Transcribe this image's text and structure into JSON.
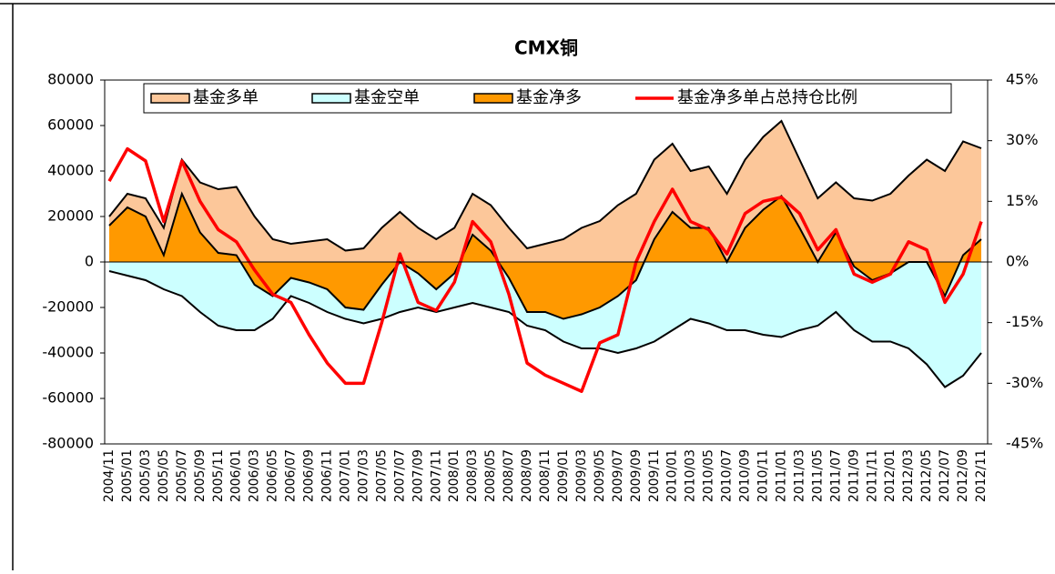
{
  "chart_data": {
    "type": "area-line",
    "title": "CMX铜",
    "categories": [
      "2004/11",
      "2005/01",
      "2005/03",
      "2005/05",
      "2005/07",
      "2005/09",
      "2005/11",
      "2006/01",
      "2006/03",
      "2006/05",
      "2006/07",
      "2006/09",
      "2006/11",
      "2007/01",
      "2007/03",
      "2007/05",
      "2007/07",
      "2007/09",
      "2007/11",
      "2008/01",
      "2008/03",
      "2008/05",
      "2008/07",
      "2008/09",
      "2008/11",
      "2009/01",
      "2009/03",
      "2009/05",
      "2009/07",
      "2009/09",
      "2009/11",
      "2010/01",
      "2010/03",
      "2010/05",
      "2010/07",
      "2010/09",
      "2010/11",
      "2011/01",
      "2011/03",
      "2011/05",
      "2011/07",
      "2011/09",
      "2011/11",
      "2012/01",
      "2012/03",
      "2012/05",
      "2012/07",
      "2012/09",
      "2012/11"
    ],
    "series": [
      {
        "name": "基金多单",
        "color": "#fcc79a",
        "values": [
          20000,
          30000,
          28000,
          15000,
          45000,
          35000,
          32000,
          33000,
          20000,
          10000,
          8000,
          9000,
          10000,
          5000,
          6000,
          15000,
          22000,
          15000,
          10000,
          15000,
          30000,
          25000,
          15000,
          6000,
          8000,
          10000,
          15000,
          18000,
          25000,
          30000,
          45000,
          52000,
          40000,
          42000,
          30000,
          45000,
          55000,
          62000,
          45000,
          28000,
          35000,
          28000,
          27000,
          30000,
          38000,
          45000,
          40000,
          53000,
          50000
        ]
      },
      {
        "name": "基金空单",
        "color": "#ccffff",
        "values": [
          -4000,
          -6000,
          -8000,
          -12000,
          -15000,
          -22000,
          -28000,
          -30000,
          -30000,
          -25000,
          -15000,
          -18000,
          -22000,
          -25000,
          -27000,
          -25000,
          -22000,
          -20000,
          -22000,
          -20000,
          -18000,
          -20000,
          -22000,
          -28000,
          -30000,
          -35000,
          -38000,
          -38000,
          -40000,
          -38000,
          -35000,
          -30000,
          -25000,
          -27000,
          -30000,
          -30000,
          -32000,
          -33000,
          -30000,
          -28000,
          -22000,
          -30000,
          -35000,
          -35000,
          -38000,
          -45000,
          -55000,
          -50000,
          -40000
        ]
      },
      {
        "name": "基金净多",
        "color": "#ff9900",
        "values": [
          16000,
          24000,
          20000,
          3000,
          30000,
          13000,
          4000,
          3000,
          -10000,
          -15000,
          -7000,
          -9000,
          -12000,
          -20000,
          -21000,
          -10000,
          0,
          -5000,
          -12000,
          -5000,
          12000,
          5000,
          -7000,
          -22000,
          -22000,
          -25000,
          -23000,
          -20000,
          -15000,
          -8000,
          10000,
          22000,
          15000,
          15000,
          0,
          15000,
          23000,
          29000,
          15000,
          0,
          13000,
          -2000,
          -8000,
          -5000,
          0,
          0,
          -15000,
          3000,
          10000
        ]
      },
      {
        "name": "基金净多单占总持仓比例",
        "color": "#ff0000",
        "axis": "y2",
        "values": [
          20,
          28,
          25,
          10,
          25,
          15,
          8,
          5,
          -2,
          -8,
          -10,
          -18,
          -25,
          -30,
          -30,
          -15,
          2,
          -10,
          -12,
          -5,
          10,
          5,
          -8,
          -25,
          -28,
          -30,
          -32,
          -20,
          -18,
          0,
          10,
          18,
          10,
          8,
          2,
          12,
          15,
          16,
          12,
          3,
          8,
          -3,
          -5,
          -3,
          5,
          3,
          -10,
          -3,
          10
        ]
      }
    ],
    "ylim": [
      -80000,
      80000
    ],
    "yticks": [
      -80000,
      -60000,
      -40000,
      -20000,
      0,
      20000,
      40000,
      60000,
      80000
    ],
    "y2lim": [
      -45,
      45
    ],
    "y2ticks": [
      {
        "value": -45,
        "label": "-45%"
      },
      {
        "value": -30,
        "label": "-30%"
      },
      {
        "value": -15,
        "label": "-15%"
      },
      {
        "value": 0,
        "label": "0%"
      },
      {
        "value": 15,
        "label": "15%"
      },
      {
        "value": 30,
        "label": "30%"
      },
      {
        "value": 45,
        "label": "45%"
      }
    ],
    "legend": "top"
  }
}
